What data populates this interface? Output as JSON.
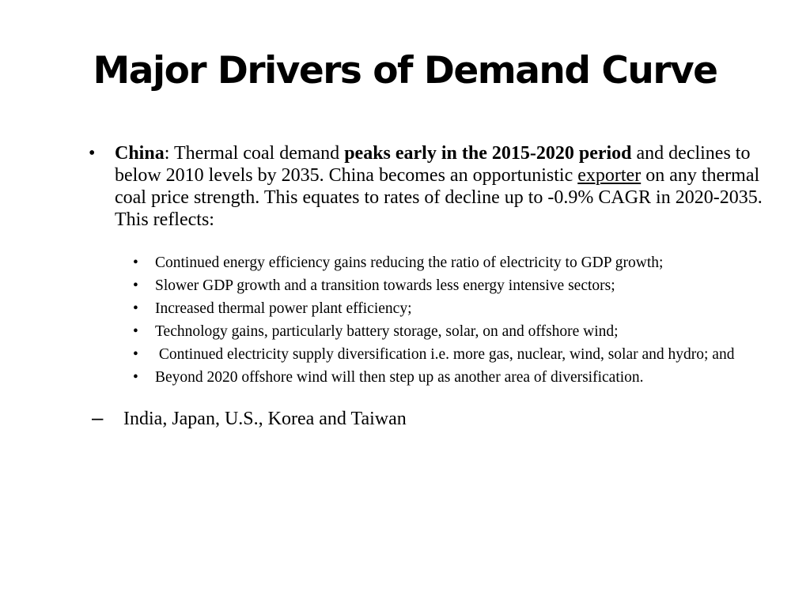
{
  "slide": {
    "title": "Major Drivers of Demand Curve",
    "main_point": {
      "bullet": "•",
      "label": "China",
      "sep": ": ",
      "text1": "Thermal coal demand ",
      "bold_phrase": "peaks early in the 2015-2020 period",
      "text2": " and declines to below 2010 levels by 2035.  China becomes an opportunistic ",
      "underlined": "exporter",
      "text3": " on any thermal coal price strength. This equates to rates of decline up to -0.9% CAGR in 2020-2035. This reflects:"
    },
    "sub_bullet_symbol": "•",
    "sub_points": [
      "Continued energy efficiency gains reducing the ratio of electricity to GDP growth;",
      "Slower GDP growth and a transition towards less energy intensive sectors;",
      "Increased thermal power plant efficiency;",
      "Technology gains, particularly battery storage, solar, on and offshore wind;",
      " Continued electricity supply diversification i.e. more gas, nuclear, wind, solar and hydro; and",
      "Beyond 2020 offshore wind will then step up as another area of diversification."
    ],
    "dash_point": {
      "dash": "–",
      "text": "India, Japan, U.S., Korea and Taiwan"
    }
  }
}
